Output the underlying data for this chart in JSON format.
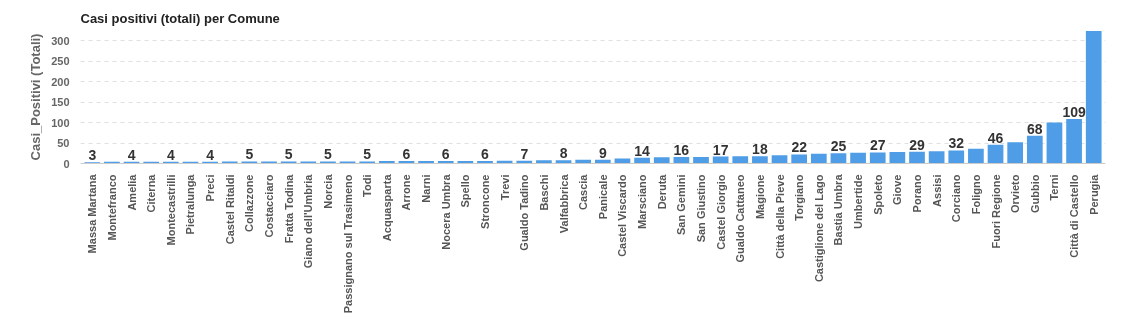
{
  "chart_data": {
    "type": "bar",
    "title": "Casi positivi (totali) per Comune",
    "ylabel": "Casi_Positivi (Totali)",
    "categories": [
      "Massa Martana",
      "Montefranco",
      "Amelia",
      "Citerna",
      "Montecastrilli",
      "Pietralunga",
      "Preci",
      "Castel Ritaldi",
      "Collazzone",
      "Costacciaro",
      "Fratta Todina",
      "Giano dell'Umbria",
      "Norcia",
      "Passignano sul Trasimeno",
      "Todi",
      "Acquasparta",
      "Arrone",
      "Narni",
      "Nocera Umbra",
      "Spello",
      "Stroncone",
      "Trevi",
      "Gualdo Tadino",
      "Baschi",
      "Valfabbrica",
      "Cascia",
      "Panicale",
      "Castel Viscardo",
      "Marsciano",
      "Deruta",
      "San Gemini",
      "San Giustino",
      "Castel Giorgio",
      "Gualdo Cattaneo",
      "Magione",
      "Città della Pieve",
      "Torgiano",
      "Castiglione del Lago",
      "Bastia Umbra",
      "Umbertide",
      "Spoleto",
      "Giove",
      "Porano",
      "Assisi",
      "Corciano",
      "Foligno",
      "Fuori Regione",
      "Orvieto",
      "Gubbio",
      "Terni",
      "Città di Castello",
      "Perugia"
    ],
    "values": [
      3,
      4,
      4,
      4,
      4,
      4,
      4,
      5,
      5,
      5,
      5,
      5,
      5,
      5,
      5,
      6,
      6,
      6,
      6,
      6,
      6,
      7,
      7,
      8,
      8,
      9,
      9,
      12,
      14,
      15,
      16,
      16,
      17,
      18,
      18,
      20,
      22,
      24,
      25,
      26,
      27,
      28,
      29,
      30,
      32,
      36,
      46,
      52,
      68,
      100,
      109,
      324
    ],
    "value_labels": [
      "3",
      null,
      "4",
      null,
      "4",
      null,
      "4",
      null,
      "5",
      null,
      "5",
      null,
      "5",
      null,
      "5",
      null,
      "6",
      null,
      "6",
      null,
      "6",
      null,
      "7",
      null,
      "8",
      null,
      "9",
      null,
      "14",
      null,
      "16",
      null,
      "17",
      null,
      "18",
      null,
      "22",
      null,
      "25",
      null,
      "27",
      null,
      "29",
      null,
      "32",
      null,
      "46",
      null,
      "68",
      null,
      "109",
      null
    ],
    "color": "#4e9de6",
    "ylim": [
      0,
      325
    ],
    "yticks": [
      0,
      50,
      100,
      150,
      200,
      250,
      300
    ],
    "grid": "y"
  }
}
